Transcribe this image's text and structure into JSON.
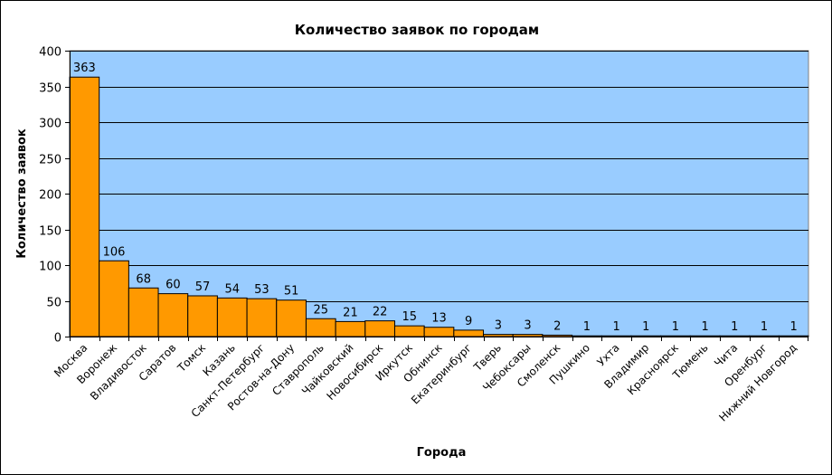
{
  "colors": {
    "plot_bg": "#99CCFF",
    "bar_fill": "#FF9900",
    "bar_stroke": "#000000",
    "grid": "#000000"
  },
  "chart_data": {
    "type": "bar",
    "title": "Количество заявок по городам",
    "xlabel": "Города",
    "ylabel": "Количество заявок",
    "ylim": [
      0,
      400
    ],
    "yticks": [
      0,
      50,
      100,
      150,
      200,
      250,
      300,
      350,
      400
    ],
    "grid": true,
    "legend": "none",
    "categories": [
      "Москва",
      "Воронеж",
      "Владивосток",
      "Саратов",
      "Томск",
      "Казань",
      "Санкт-Петербург",
      "Ростов-на-Дону",
      "Ставрополь",
      "Чайковский",
      "Новосибирск",
      "Иркутск",
      "Обнинск",
      "Екатеринбург",
      "Тверь",
      "Чебоксары",
      "Смоленск",
      "Пушкино",
      "Ухта",
      "Владимир",
      "Красноярск",
      "Тюмень",
      "Чита",
      "Оренбург",
      "Нижний Новгород"
    ],
    "values": [
      363,
      106,
      68,
      60,
      57,
      54,
      53,
      51,
      25,
      21,
      22,
      15,
      13,
      9,
      3,
      3,
      2,
      1,
      1,
      1,
      1,
      1,
      1,
      1,
      1
    ]
  }
}
